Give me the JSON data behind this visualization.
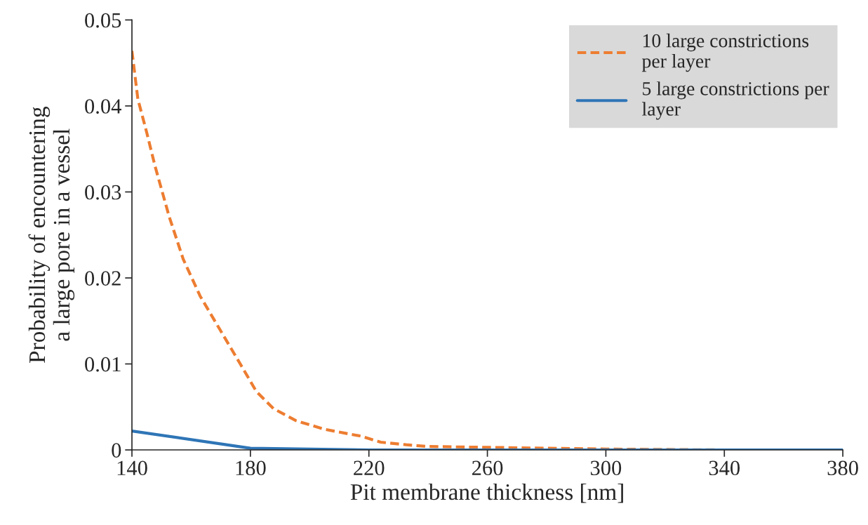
{
  "chart_data": {
    "type": "line",
    "xlabel": "Pit membrane thickness [nm]",
    "ylabel": "Probability of encountering\na large pore in a vessel",
    "xlim": [
      140,
      380
    ],
    "xticks": [
      140,
      180,
      220,
      260,
      300,
      340,
      380
    ],
    "ylim": [
      0,
      0.05
    ],
    "yticks": [
      0,
      0.01,
      0.02,
      0.03,
      0.04,
      0.05
    ],
    "grid": false,
    "legend": "top right",
    "series": [
      {
        "name": "10 large constrictions\nper layer",
        "color": "#ed7d31",
        "line_style": "dashed",
        "x": [
          140,
          142,
          145,
          147.8,
          152.6,
          157.3,
          163,
          169.7,
          176.4,
          182,
          187.8,
          195.4,
          205,
          217.3,
          224,
          232.6,
          240,
          260,
          280,
          300,
          340,
          380
        ],
        "values": [
          0.0464,
          0.0408,
          0.0369,
          0.033,
          0.0271,
          0.0222,
          0.0179,
          0.014,
          0.0101,
          0.0068,
          0.0048,
          0.0034,
          0.0024,
          0.0016,
          0.0009,
          0.0006,
          0.0004,
          0.0003,
          0.0002,
          0.0001,
          0,
          0
        ]
      },
      {
        "name": "5 large constrictions per\nlayer",
        "color": "#2e75b6",
        "line_style": "solid",
        "x": [
          140,
          180,
          220,
          260,
          300,
          340,
          380
        ],
        "values": [
          0.0022,
          0.0002,
          0,
          0,
          0,
          0,
          0
        ]
      }
    ]
  }
}
